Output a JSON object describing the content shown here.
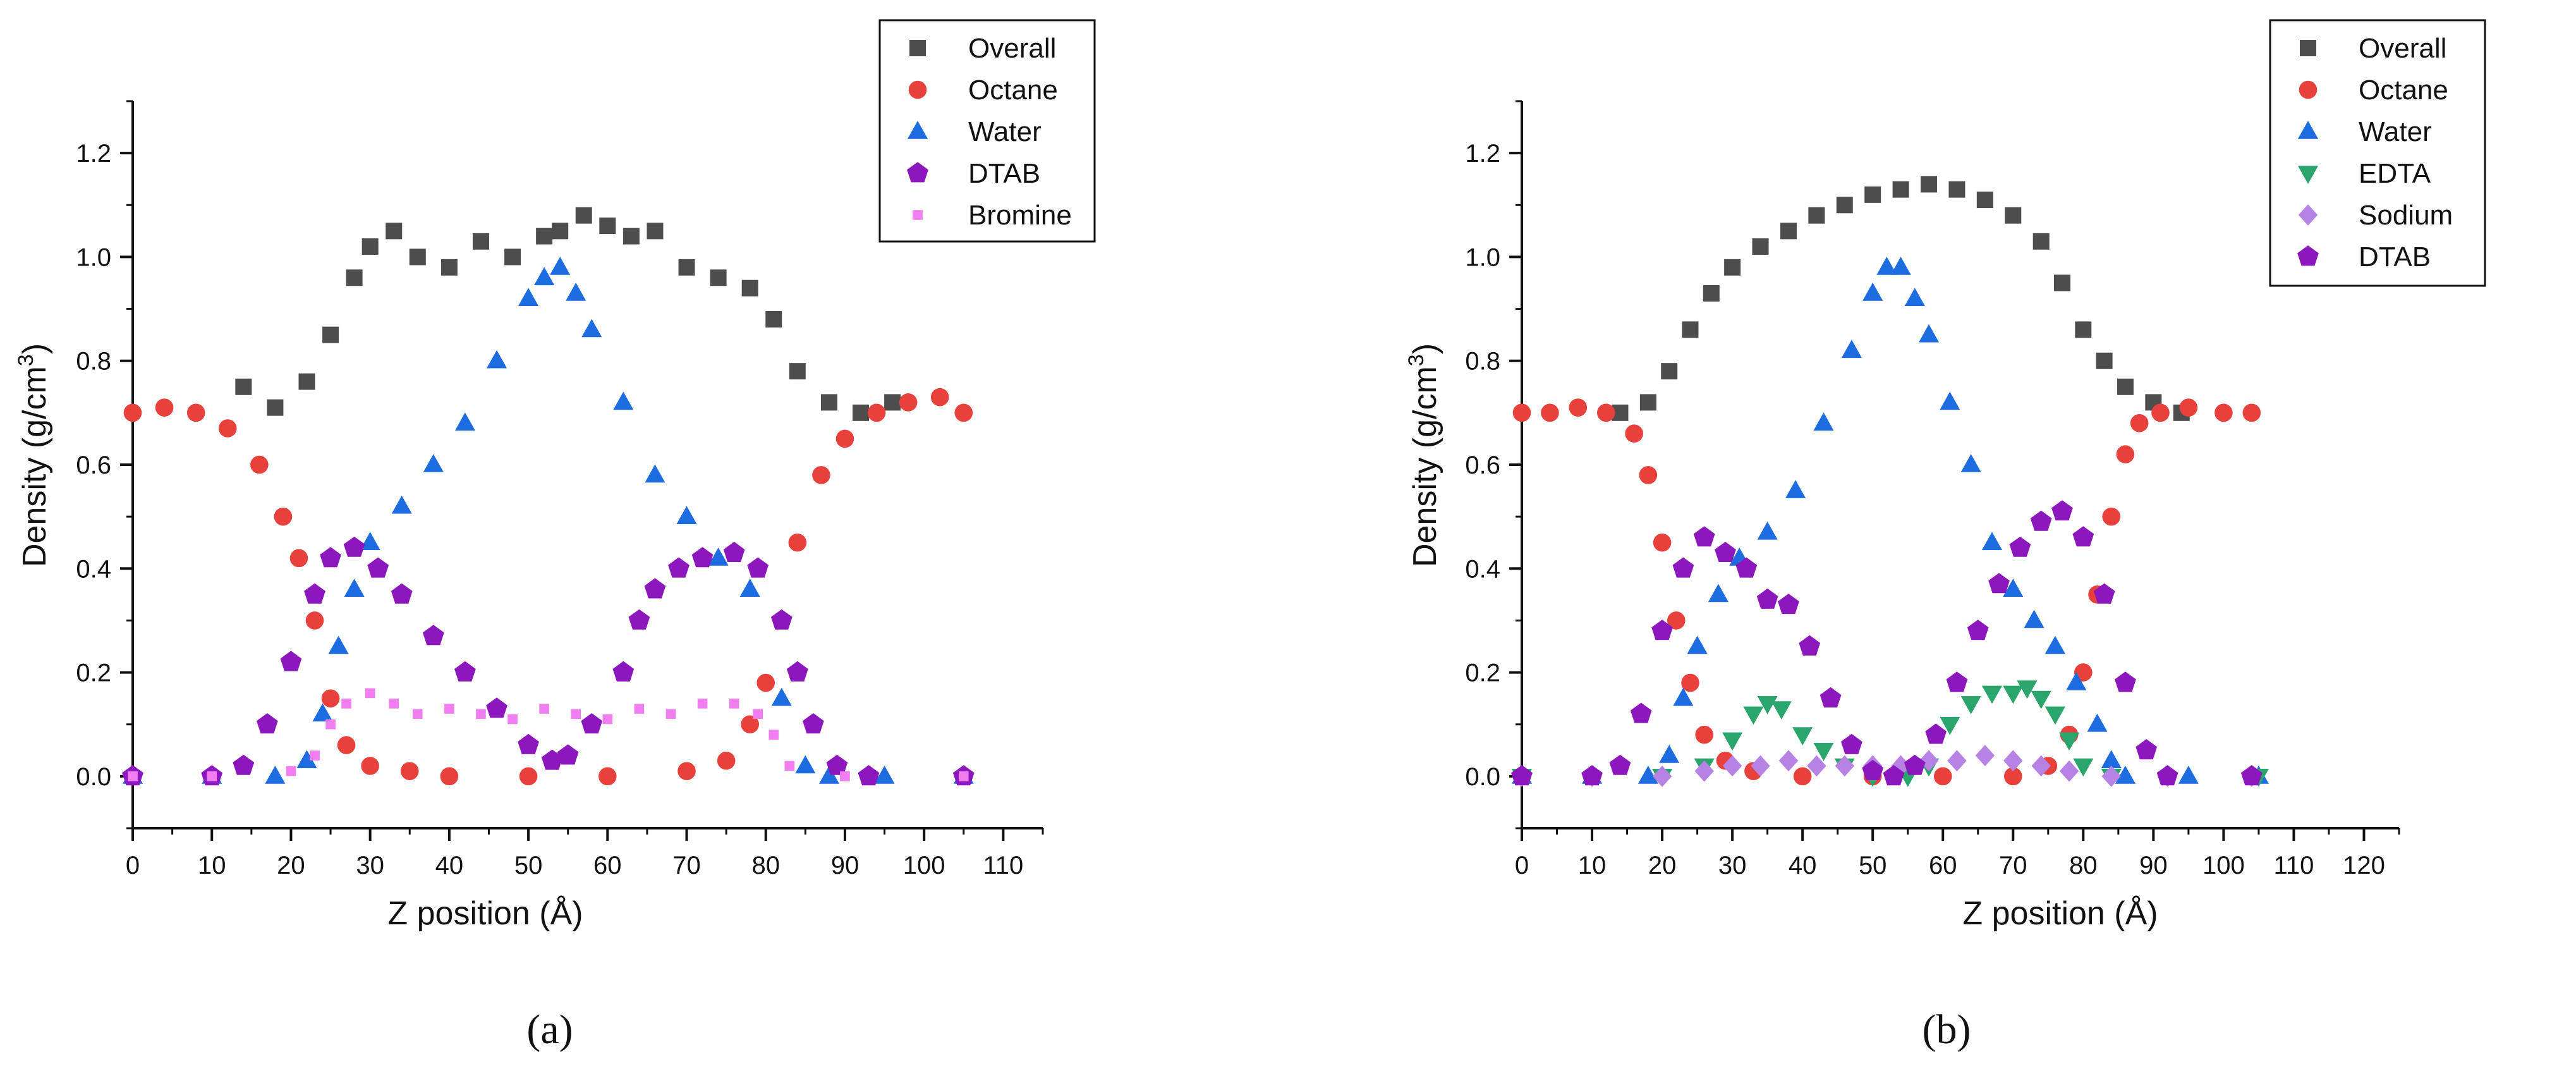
{
  "chart_data": [
    {
      "type": "scatter",
      "panel_label": "(a)",
      "xlabel": "Z position (Å)",
      "ylabel_prefix": "Density (g/cm",
      "ylabel_sup": "3",
      "ylabel_suffix": ")",
      "xlim": [
        0,
        115
      ],
      "ylim": [
        -0.1,
        1.3
      ],
      "xticks": [
        0,
        10,
        20,
        30,
        40,
        50,
        60,
        70,
        80,
        90,
        100,
        110
      ],
      "yticks": [
        0.0,
        0.2,
        0.4,
        0.6,
        0.8,
        1.0,
        1.2
      ],
      "legend_position": "top-right",
      "series": [
        {
          "name": "Overall",
          "marker": "square",
          "color": "#4d4d4d",
          "x": [
            14,
            18,
            22,
            25,
            28,
            30,
            33,
            36,
            40,
            44,
            48,
            52,
            54,
            57,
            60,
            63,
            66,
            70,
            74,
            78,
            81,
            84,
            88,
            92,
            96
          ],
          "y": [
            0.75,
            0.71,
            0.76,
            0.85,
            0.96,
            1.02,
            1.05,
            1.0,
            0.98,
            1.03,
            1.0,
            1.04,
            1.05,
            1.08,
            1.06,
            1.04,
            1.05,
            0.98,
            0.96,
            0.94,
            0.88,
            0.78,
            0.72,
            0.7,
            0.72
          ]
        },
        {
          "name": "Octane",
          "marker": "circle",
          "color": "#e8413c",
          "x": [
            0,
            4,
            8,
            12,
            16,
            19,
            21,
            23,
            25,
            27,
            30,
            35,
            40,
            50,
            60,
            70,
            75,
            78,
            80,
            82,
            84,
            87,
            90,
            94,
            98,
            102,
            105
          ],
          "y": [
            0.7,
            0.71,
            0.7,
            0.67,
            0.6,
            0.5,
            0.42,
            0.3,
            0.15,
            0.06,
            0.02,
            0.01,
            0.0,
            0.0,
            0.0,
            0.01,
            0.03,
            0.1,
            0.18,
            0.3,
            0.45,
            0.58,
            0.65,
            0.7,
            0.72,
            0.73,
            0.7
          ]
        },
        {
          "name": "Water",
          "marker": "triangle-up",
          "color": "#1e6de0",
          "x": [
            0,
            10,
            18,
            22,
            24,
            26,
            28,
            30,
            34,
            38,
            42,
            46,
            50,
            52,
            54,
            56,
            58,
            62,
            66,
            70,
            74,
            78,
            82,
            85,
            88,
            95,
            105
          ],
          "y": [
            0.0,
            0.0,
            0.0,
            0.03,
            0.12,
            0.25,
            0.36,
            0.45,
            0.52,
            0.6,
            0.68,
            0.8,
            0.92,
            0.96,
            0.98,
            0.93,
            0.86,
            0.72,
            0.58,
            0.5,
            0.42,
            0.36,
            0.15,
            0.02,
            0.0,
            0.0,
            0.0
          ]
        },
        {
          "name": "DTAB",
          "marker": "pentagon",
          "color": "#8b17bd",
          "x": [
            0,
            10,
            14,
            17,
            20,
            23,
            25,
            28,
            31,
            34,
            38,
            42,
            46,
            50,
            53,
            55,
            58,
            62,
            64,
            66,
            69,
            72,
            76,
            79,
            82,
            84,
            86,
            89,
            93,
            105
          ],
          "y": [
            0.0,
            0.0,
            0.02,
            0.1,
            0.22,
            0.35,
            0.42,
            0.44,
            0.4,
            0.35,
            0.27,
            0.2,
            0.13,
            0.06,
            0.03,
            0.04,
            0.1,
            0.2,
            0.3,
            0.36,
            0.4,
            0.42,
            0.43,
            0.4,
            0.3,
            0.2,
            0.1,
            0.02,
            0.0,
            0.0
          ]
        },
        {
          "name": "Bromine",
          "marker": "small-square",
          "color": "#f07ef0",
          "x": [
            0,
            10,
            20,
            23,
            25,
            27,
            30,
            33,
            36,
            40,
            44,
            48,
            52,
            56,
            60,
            64,
            68,
            72,
            76,
            79,
            81,
            83,
            90,
            105
          ],
          "y": [
            0.0,
            0.0,
            0.01,
            0.04,
            0.1,
            0.14,
            0.16,
            0.14,
            0.12,
            0.13,
            0.12,
            0.11,
            0.13,
            0.12,
            0.11,
            0.13,
            0.12,
            0.14,
            0.14,
            0.12,
            0.08,
            0.02,
            0.0,
            0.0
          ]
        }
      ]
    },
    {
      "type": "scatter",
      "panel_label": "(b)",
      "xlabel": "Z position (Å)",
      "ylabel_prefix": "Density (g/cm",
      "ylabel_sup": "3",
      "ylabel_suffix": ")",
      "xlim": [
        0,
        125
      ],
      "ylim": [
        -0.1,
        1.3
      ],
      "xticks": [
        0,
        10,
        20,
        30,
        40,
        50,
        60,
        70,
        80,
        90,
        100,
        110,
        120
      ],
      "yticks": [
        0.0,
        0.2,
        0.4,
        0.6,
        0.8,
        1.0,
        1.2
      ],
      "legend_position": "top-right",
      "series": [
        {
          "name": "Overall",
          "marker": "square",
          "color": "#4d4d4d",
          "x": [
            14,
            18,
            21,
            24,
            27,
            30,
            34,
            38,
            42,
            46,
            50,
            54,
            58,
            62,
            66,
            70,
            74,
            77,
            80,
            83,
            86,
            90,
            94
          ],
          "y": [
            0.7,
            0.72,
            0.78,
            0.86,
            0.93,
            0.98,
            1.02,
            1.05,
            1.08,
            1.1,
            1.12,
            1.13,
            1.14,
            1.13,
            1.11,
            1.08,
            1.03,
            0.95,
            0.86,
            0.8,
            0.75,
            0.72,
            0.7
          ]
        },
        {
          "name": "Octane",
          "marker": "circle",
          "color": "#e8413c",
          "x": [
            0,
            4,
            8,
            12,
            16,
            18,
            20,
            22,
            24,
            26,
            29,
            33,
            40,
            50,
            60,
            70,
            75,
            78,
            80,
            82,
            84,
            86,
            88,
            91,
            95,
            100,
            104
          ],
          "y": [
            0.7,
            0.7,
            0.71,
            0.7,
            0.66,
            0.58,
            0.45,
            0.3,
            0.18,
            0.08,
            0.03,
            0.01,
            0.0,
            0.0,
            0.0,
            0.0,
            0.02,
            0.08,
            0.2,
            0.35,
            0.5,
            0.62,
            0.68,
            0.7,
            0.71,
            0.7,
            0.7
          ]
        },
        {
          "name": "Water",
          "marker": "triangle-up",
          "color": "#1e6de0",
          "x": [
            0,
            10,
            18,
            21,
            23,
            25,
            28,
            31,
            35,
            39,
            43,
            47,
            50,
            52,
            54,
            56,
            58,
            61,
            64,
            67,
            70,
            73,
            76,
            79,
            82,
            84,
            86,
            95,
            105
          ],
          "y": [
            0.0,
            0.0,
            0.0,
            0.04,
            0.15,
            0.25,
            0.35,
            0.42,
            0.47,
            0.55,
            0.68,
            0.82,
            0.93,
            0.98,
            0.98,
            0.92,
            0.85,
            0.72,
            0.6,
            0.45,
            0.36,
            0.3,
            0.25,
            0.18,
            0.1,
            0.03,
            0.0,
            0.0,
            0.0
          ]
        },
        {
          "name": "EDTA",
          "marker": "triangle-down",
          "color": "#2aa56b",
          "x": [
            0,
            20,
            26,
            30,
            33,
            35,
            37,
            40,
            43,
            46,
            50,
            55,
            58,
            61,
            64,
            67,
            70,
            72,
            74,
            76,
            78,
            80,
            84,
            105
          ],
          "y": [
            0.0,
            0.0,
            0.02,
            0.07,
            0.12,
            0.14,
            0.13,
            0.08,
            0.05,
            0.02,
            0.0,
            0.0,
            0.02,
            0.1,
            0.14,
            0.16,
            0.16,
            0.17,
            0.15,
            0.12,
            0.07,
            0.02,
            0.0,
            0.0
          ]
        },
        {
          "name": "Sodium",
          "marker": "diamond",
          "color": "#b682e4",
          "x": [
            0,
            10,
            20,
            26,
            30,
            34,
            38,
            42,
            46,
            50,
            54,
            58,
            62,
            66,
            70,
            74,
            78,
            84,
            92,
            104
          ],
          "y": [
            0.0,
            0.0,
            0.0,
            0.01,
            0.02,
            0.02,
            0.03,
            0.02,
            0.02,
            0.02,
            0.02,
            0.03,
            0.03,
            0.04,
            0.03,
            0.02,
            0.01,
            0.0,
            0.0,
            0.0
          ]
        },
        {
          "name": "DTAB",
          "marker": "pentagon",
          "color": "#8b17bd",
          "x": [
            0,
            10,
            14,
            17,
            20,
            23,
            26,
            29,
            32,
            35,
            38,
            41,
            44,
            47,
            50,
            53,
            56,
            59,
            62,
            65,
            68,
            71,
            74,
            77,
            80,
            83,
            86,
            89,
            92,
            104
          ],
          "y": [
            0.0,
            0.0,
            0.02,
            0.12,
            0.28,
            0.4,
            0.46,
            0.43,
            0.4,
            0.34,
            0.33,
            0.25,
            0.15,
            0.06,
            0.01,
            0.0,
            0.02,
            0.08,
            0.18,
            0.28,
            0.37,
            0.44,
            0.49,
            0.51,
            0.46,
            0.35,
            0.18,
            0.05,
            0.0,
            0.0
          ]
        }
      ]
    }
  ]
}
